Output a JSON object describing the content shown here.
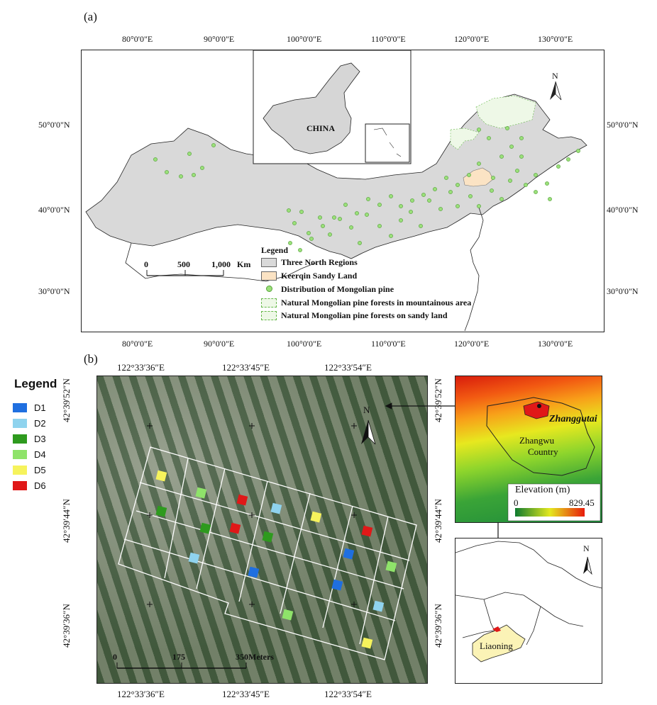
{
  "panel_a": {
    "label": "(a)",
    "lon_ticks": [
      "80°0'0\"E",
      "90°0'0\"E",
      "100°0'0\"E",
      "110°0'0\"E",
      "120°0'0\"E",
      "130°0'0\"E"
    ],
    "lat_ticks": [
      "50°0'0\"N",
      "40°0'0\"N",
      "30°0'0\"N"
    ],
    "inset_label": "CHINA",
    "north": "N",
    "scale": {
      "zero": "0",
      "mid": "500",
      "end": "1,000",
      "unit": "Km"
    },
    "legend": {
      "title": "Legend",
      "items": [
        {
          "label": "Three North Regions",
          "color": "#d9d9d9"
        },
        {
          "label": "Keerqin Sandy Land",
          "color": "#fbe3c4"
        },
        {
          "label": "Distribution of Mongolian pine",
          "color": "#9be07a"
        },
        {
          "label": "Natural Mongolian pine forests in mountainous area",
          "color": "#e9f6e1"
        },
        {
          "label": "Natural Mongolian pine forests on sandy land",
          "color": "#e9f6e1"
        }
      ]
    }
  },
  "panel_b": {
    "label": "(b)",
    "lon_ticks": [
      "122°33′36″E",
      "122°33′45″E",
      "122°33′54″E"
    ],
    "lat_ticks": [
      "42°39′52″N",
      "42°39′44″N",
      "42°39′36″N"
    ],
    "north": "N",
    "scale": {
      "zero": "0",
      "mid": "175",
      "end": "350",
      "unit": "Meters"
    },
    "plot_legend": {
      "title": "Legend",
      "items": [
        {
          "label": "D1",
          "color": "#1f6fe0"
        },
        {
          "label": "D2",
          "color": "#8fd3ee"
        },
        {
          "label": "D3",
          "color": "#2e9a1e"
        },
        {
          "label": "D4",
          "color": "#8fe36a"
        },
        {
          "label": "D5",
          "color": "#f6f35c"
        },
        {
          "label": "D6",
          "color": "#e01818"
        }
      ]
    },
    "elevation": {
      "place1": "Zhanggutai",
      "place2": "Zhangwu",
      "place3": "Country",
      "legend_title": "Elevation (m)",
      "min": "0",
      "max": "829.45"
    },
    "province": {
      "label": "Liaoning",
      "north": "N"
    }
  }
}
